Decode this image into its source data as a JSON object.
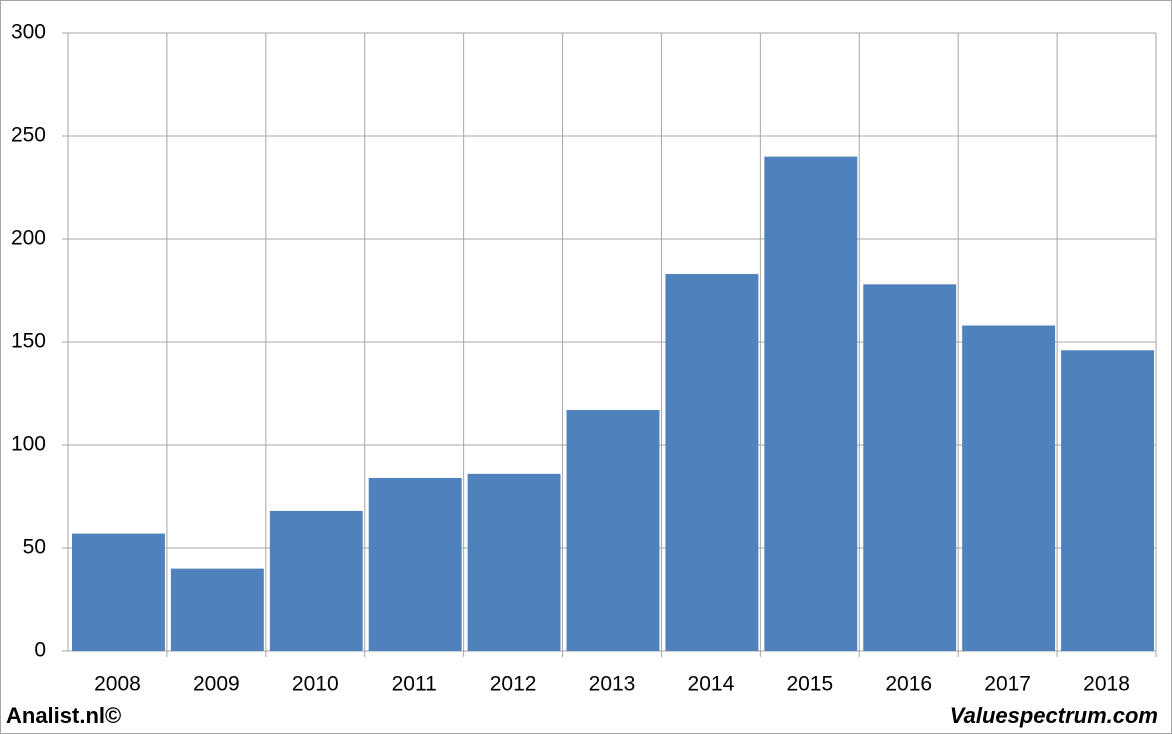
{
  "chart_data": {
    "type": "bar",
    "categories": [
      "2008",
      "2009",
      "2010",
      "2011",
      "2012",
      "2013",
      "2014",
      "2015",
      "2016",
      "2017",
      "2018"
    ],
    "values": [
      57,
      40,
      68,
      84,
      86,
      117,
      183,
      240,
      178,
      158,
      146
    ],
    "color": "#4f81bd",
    "ylim": [
      0,
      300
    ],
    "yticks": [
      0,
      50,
      100,
      150,
      200,
      250,
      300
    ],
    "grid": true
  },
  "footer": {
    "left": "Analist.nl©",
    "right": "Valuespectrum.com"
  }
}
